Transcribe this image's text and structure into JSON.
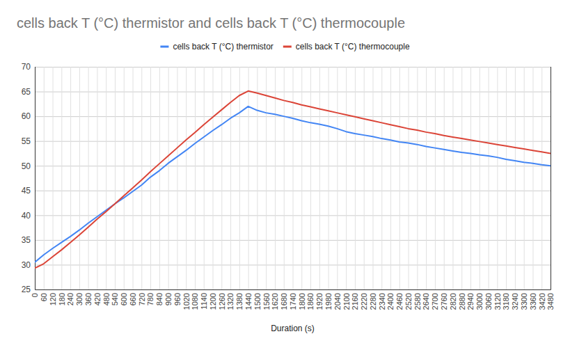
{
  "chart_data": {
    "type": "line",
    "title": "cells back T (°C) thermistor and cells back T (°C) thermocouple",
    "x_label": "Duration (s)",
    "x": [
      0,
      60,
      120,
      180,
      240,
      300,
      360,
      420,
      480,
      540,
      600,
      660,
      720,
      780,
      840,
      900,
      960,
      1020,
      1080,
      1140,
      1200,
      1260,
      1320,
      1380,
      1440,
      1500,
      1560,
      1620,
      1680,
      1740,
      1800,
      1860,
      1920,
      1980,
      2040,
      2100,
      2160,
      2220,
      2280,
      2340,
      2400,
      2460,
      2520,
      2580,
      2640,
      2700,
      2760,
      2820,
      2880,
      2940,
      3000,
      3060,
      3120,
      3180,
      3240,
      3300,
      3360,
      3420,
      3480
    ],
    "series": [
      {
        "name": "cells back T (°C) thermistor",
        "color": "#4285f4",
        "values": [
          30.5,
          32.0,
          33.3,
          34.5,
          35.7,
          37.0,
          38.4,
          39.7,
          41.0,
          42.3,
          43.5,
          44.8,
          46.1,
          47.7,
          49.0,
          50.5,
          51.8,
          53.1,
          54.5,
          55.8,
          57.1,
          58.3,
          59.6,
          60.7,
          62.0,
          61.2,
          60.7,
          60.4,
          60.0,
          59.6,
          59.1,
          58.7,
          58.4,
          58.0,
          57.5,
          56.9,
          56.5,
          56.2,
          55.9,
          55.5,
          55.2,
          54.8,
          54.6,
          54.3,
          53.9,
          53.6,
          53.3,
          53.0,
          52.7,
          52.5,
          52.2,
          52.0,
          51.7,
          51.3,
          51.0,
          50.7,
          50.5,
          50.2,
          50.0
        ]
      },
      {
        "name": "cells back T (°C) thermocouple",
        "color": "#db4437",
        "values": [
          29.3,
          30.2,
          31.6,
          33.0,
          34.5,
          36.0,
          37.6,
          39.2,
          40.7,
          42.3,
          43.9,
          45.5,
          47.1,
          48.8,
          50.4,
          52.0,
          53.6,
          55.2,
          56.7,
          58.3,
          59.8,
          61.3,
          62.8,
          64.2,
          65.1,
          64.7,
          64.2,
          63.7,
          63.2,
          62.8,
          62.3,
          61.9,
          61.5,
          61.1,
          60.7,
          60.3,
          59.9,
          59.5,
          59.1,
          58.7,
          58.3,
          57.9,
          57.5,
          57.2,
          56.8,
          56.5,
          56.1,
          55.8,
          55.5,
          55.2,
          54.9,
          54.6,
          54.3,
          54.0,
          53.7,
          53.4,
          53.1,
          52.8,
          52.5
        ]
      }
    ],
    "xlim": [
      0,
      3480
    ],
    "xticks": [
      0,
      60,
      120,
      180,
      240,
      300,
      360,
      420,
      480,
      540,
      600,
      660,
      720,
      780,
      840,
      900,
      960,
      1020,
      1080,
      1140,
      1200,
      1260,
      1320,
      1380,
      1440,
      1500,
      1560,
      1620,
      1680,
      1740,
      1800,
      1860,
      1920,
      1980,
      2040,
      2100,
      2160,
      2220,
      2280,
      2340,
      2400,
      2460,
      2520,
      2580,
      2640,
      2700,
      2760,
      2820,
      2880,
      2940,
      3000,
      3060,
      3120,
      3180,
      3240,
      3300,
      3360,
      3420,
      3480
    ],
    "ylim": [
      25,
      70
    ],
    "yticks": [
      25,
      30,
      35,
      40,
      45,
      50,
      55,
      60,
      65,
      70
    ],
    "grid": true,
    "legend": "top"
  }
}
